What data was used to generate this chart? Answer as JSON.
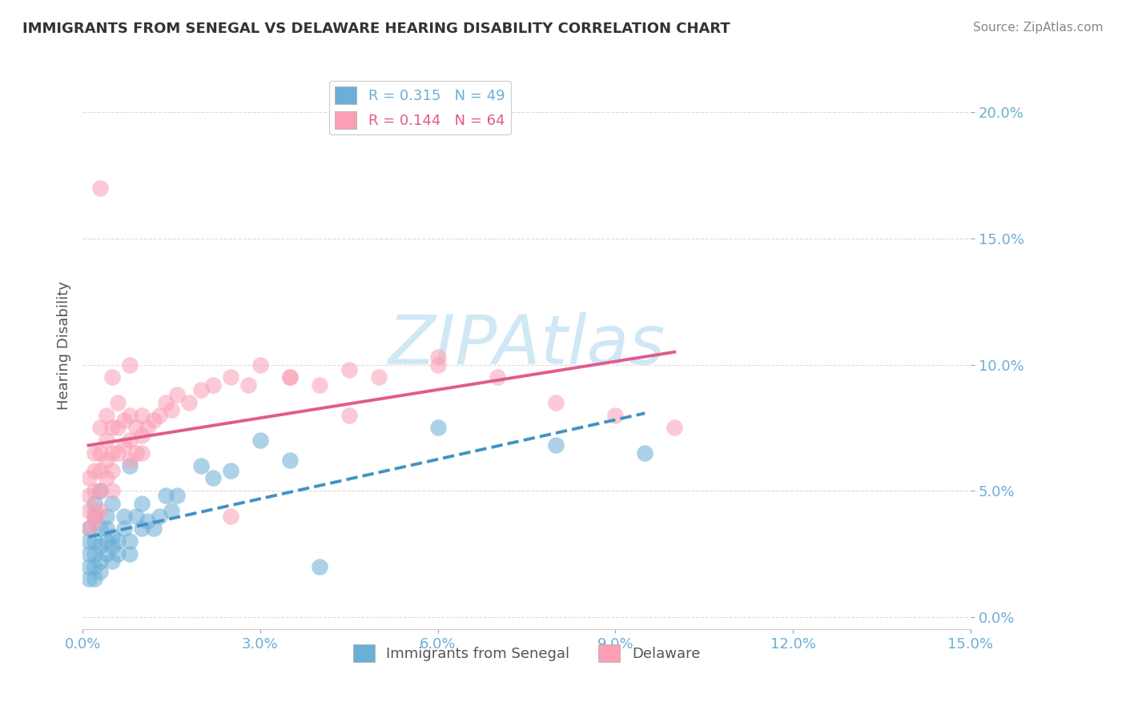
{
  "title": "IMMIGRANTS FROM SENEGAL VS DELAWARE HEARING DISABILITY CORRELATION CHART",
  "source_text": "Source: ZipAtlas.com",
  "xlabel": "",
  "ylabel": "Hearing Disability",
  "legend_label1": "Immigrants from Senegal",
  "legend_label2": "Delaware",
  "r1": 0.315,
  "n1": 49,
  "r2": 0.144,
  "n2": 64,
  "xlim": [
    0.0,
    0.15
  ],
  "ylim": [
    -0.005,
    0.22
  ],
  "yticks": [
    0.0,
    0.05,
    0.1,
    0.15,
    0.2
  ],
  "ytick_labels": [
    "0.0%",
    "5.0%",
    "10.0%",
    "15.0%",
    "20.0%"
  ],
  "xticks": [
    0.0,
    0.03,
    0.06,
    0.09,
    0.12,
    0.15
  ],
  "xtick_labels": [
    "0.0%",
    "3.0%",
    "6.0%",
    "9.0%",
    "12.0%",
    "15.0%"
  ],
  "color_blue": "#6baed6",
  "color_pink": "#fa9fb5",
  "trend_blue": "#4292c6",
  "trend_pink": "#e05c8a",
  "title_color": "#333333",
  "axis_color": "#6baed6",
  "watermark_color": "#d0e8f5",
  "background_color": "#ffffff",
  "blue_scatter_x": [
    0.001,
    0.001,
    0.001,
    0.001,
    0.001,
    0.002,
    0.002,
    0.002,
    0.002,
    0.002,
    0.002,
    0.003,
    0.003,
    0.003,
    0.003,
    0.003,
    0.004,
    0.004,
    0.004,
    0.004,
    0.005,
    0.005,
    0.005,
    0.005,
    0.006,
    0.006,
    0.007,
    0.007,
    0.008,
    0.008,
    0.009,
    0.01,
    0.01,
    0.011,
    0.012,
    0.013,
    0.014,
    0.015,
    0.016,
    0.02,
    0.022,
    0.025,
    0.03,
    0.035,
    0.06,
    0.08,
    0.095,
    0.04,
    0.008
  ],
  "blue_scatter_y": [
    0.03,
    0.025,
    0.02,
    0.035,
    0.015,
    0.04,
    0.03,
    0.025,
    0.02,
    0.045,
    0.015,
    0.035,
    0.028,
    0.022,
    0.05,
    0.018,
    0.03,
    0.025,
    0.04,
    0.035,
    0.028,
    0.022,
    0.032,
    0.045,
    0.03,
    0.025,
    0.04,
    0.035,
    0.025,
    0.03,
    0.04,
    0.045,
    0.035,
    0.038,
    0.035,
    0.04,
    0.048,
    0.042,
    0.048,
    0.06,
    0.055,
    0.058,
    0.07,
    0.062,
    0.075,
    0.068,
    0.065,
    0.02,
    0.06
  ],
  "pink_scatter_x": [
    0.001,
    0.001,
    0.001,
    0.001,
    0.002,
    0.002,
    0.002,
    0.002,
    0.002,
    0.003,
    0.003,
    0.003,
    0.003,
    0.003,
    0.004,
    0.004,
    0.004,
    0.004,
    0.005,
    0.005,
    0.005,
    0.005,
    0.006,
    0.006,
    0.006,
    0.007,
    0.007,
    0.008,
    0.008,
    0.008,
    0.009,
    0.009,
    0.01,
    0.01,
    0.01,
    0.011,
    0.012,
    0.013,
    0.014,
    0.015,
    0.016,
    0.018,
    0.02,
    0.022,
    0.025,
    0.028,
    0.03,
    0.035,
    0.04,
    0.045,
    0.05,
    0.06,
    0.07,
    0.08,
    0.09,
    0.1,
    0.003,
    0.005,
    0.008,
    0.025,
    0.035,
    0.045,
    0.06,
    0.002
  ],
  "pink_scatter_y": [
    0.055,
    0.048,
    0.042,
    0.035,
    0.065,
    0.058,
    0.05,
    0.042,
    0.038,
    0.075,
    0.065,
    0.058,
    0.05,
    0.042,
    0.08,
    0.07,
    0.062,
    0.055,
    0.075,
    0.065,
    0.058,
    0.05,
    0.085,
    0.075,
    0.065,
    0.078,
    0.068,
    0.08,
    0.07,
    0.062,
    0.075,
    0.065,
    0.08,
    0.072,
    0.065,
    0.075,
    0.078,
    0.08,
    0.085,
    0.082,
    0.088,
    0.085,
    0.09,
    0.092,
    0.095,
    0.092,
    0.1,
    0.095,
    0.092,
    0.098,
    0.095,
    0.1,
    0.095,
    0.085,
    0.08,
    0.075,
    0.17,
    0.095,
    0.1,
    0.04,
    0.095,
    0.08,
    0.103,
    0.04
  ]
}
